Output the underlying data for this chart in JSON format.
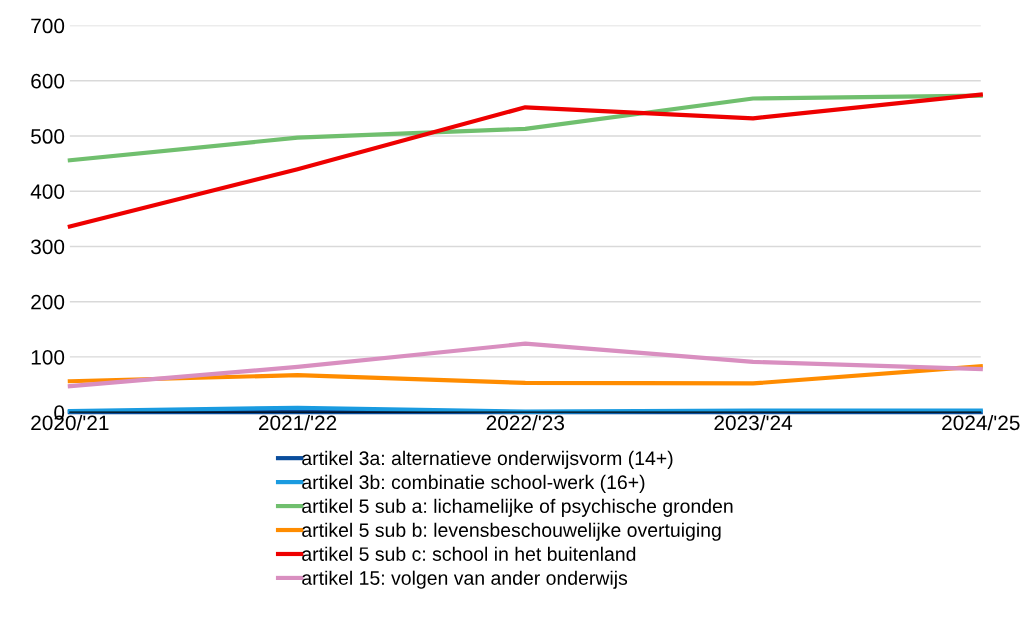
{
  "chart_data": {
    "type": "line",
    "categories": [
      "2020/'21",
      "2021/'22",
      "2022/'23",
      "2023/'24",
      "2024/'25"
    ],
    "series": [
      {
        "name": "artikel 3a: alternatieve onderwijsvorm (14+)",
        "color": "#0a4d9c",
        "values": [
          0,
          0,
          0,
          0,
          0
        ]
      },
      {
        "name": "artikel 3b: combinatie school-werk (16+)",
        "color": "#1a9be0",
        "values": [
          2,
          8,
          1,
          3,
          3
        ]
      },
      {
        "name": "artikel 5 sub a: lichamelijke of psychische gronden",
        "color": "#70bf6e",
        "values": [
          456,
          497,
          513,
          568,
          573
        ]
      },
      {
        "name": "artikel 5 sub b: levensbeschouwelijke overtuiging",
        "color": "#ff8c00",
        "values": [
          56,
          67,
          53,
          52,
          83
        ]
      },
      {
        "name": "artikel 5 sub c: school in het buitenland",
        "color": "#ee0000",
        "values": [
          336,
          440,
          552,
          532,
          575
        ]
      },
      {
        "name": "artikel 15: volgen van ander onderwijs",
        "color": "#d98fc0",
        "values": [
          47,
          82,
          124,
          91,
          78
        ]
      }
    ],
    "ylim": [
      0,
      700
    ],
    "yticks": [
      0,
      100,
      200,
      300,
      400,
      500,
      600,
      700
    ],
    "grid": "y",
    "legend": "bottom",
    "marker": "none",
    "line_style": "solid"
  }
}
